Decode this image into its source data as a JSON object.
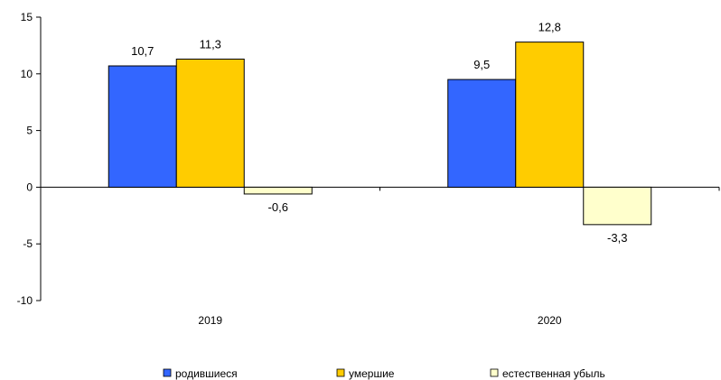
{
  "chart_data": {
    "type": "bar",
    "categories": [
      "2019",
      "2020"
    ],
    "series": [
      {
        "name": "родившиеся",
        "values": [
          10.7,
          9.5
        ],
        "labels": [
          "10,7",
          "9,5"
        ],
        "color": "#3366FF"
      },
      {
        "name": "умершие",
        "values": [
          11.3,
          12.8
        ],
        "labels": [
          "11,3",
          "12,8"
        ],
        "color": "#FFCC00"
      },
      {
        "name": "естественная убыль",
        "values": [
          -0.6,
          -3.3
        ],
        "labels": [
          "-0,6",
          "-3,3"
        ],
        "color": "#FFFFCC"
      }
    ],
    "ylim": [
      -10,
      15
    ],
    "yticks": [
      {
        "value": 15,
        "label": "15"
      },
      {
        "value": 10,
        "label": "10"
      },
      {
        "value": 5,
        "label": "5"
      },
      {
        "value": 0,
        "label": "0"
      },
      {
        "value": -5,
        "label": "-5"
      },
      {
        "value": -10,
        "label": "-10"
      }
    ],
    "grid": false,
    "legend": "bottom"
  }
}
